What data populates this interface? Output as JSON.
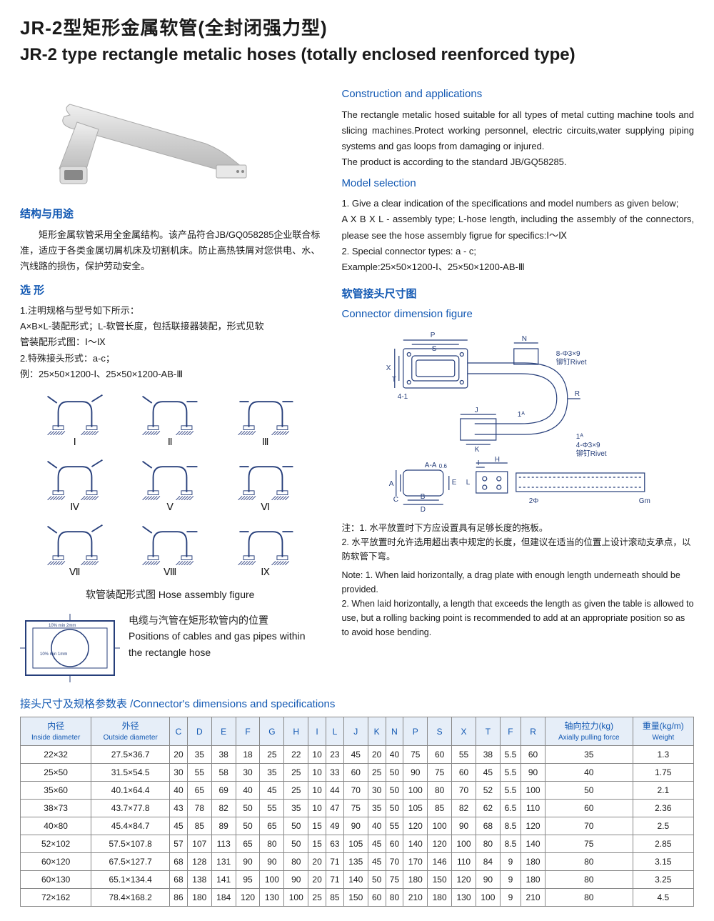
{
  "title_cn": "JR-2型矩形金属软管(全封闭强力型)",
  "title_en": "JR-2 type rectangle metalic hoses (totally enclosed reenforced type)",
  "left": {
    "structure_heading": "结构与用途",
    "structure_body": "矩形金属软管采用全金属结构。该产品符合JB/GQ058285企业联合标准，适应于各类金属切屑机床及切割机床。防止高热铁屑对您供电、水、汽线路的损伤，保护劳动安全。",
    "selection_heading": "选  形",
    "selection_lines": [
      "1.注明规格与型号如下所示：",
      "A×B×L-装配形式；L-软管长度，包括联接器装配，形式见软",
      "管装配形式图：Ⅰ～Ⅸ",
      "2.特殊接头形式：a-c；",
      "例：25×50×1200-Ⅰ、25×50×1200-AB-Ⅲ"
    ],
    "assembly_labels": [
      "Ⅰ",
      "Ⅱ",
      "Ⅲ",
      "Ⅳ",
      "Ⅴ",
      "Ⅵ",
      "Ⅶ",
      "Ⅷ",
      "Ⅸ"
    ],
    "assembly_caption": "软管装配形式图  Hose assembly figure",
    "positions_cn": "电缆与汽管在矩形软管内的位置",
    "positions_en": "Positions of cables and gas pipes within the rectangle hose"
  },
  "right": {
    "construction_heading": "Construction and applications",
    "construction_body": "The rectangle metalic hosed suitable for all types of metal cutting machine tools and slicing machines.Protect working personnel, electric circuits,water supplying piping systems and gas loops from damaging or injured.",
    "construction_body2": "The product is according to the standard JB/GQ58285.",
    "model_heading": "Model selection",
    "model_lines": [
      "1. Give a clear indication of the specifications and model numbers as given below;",
      "A X B X L - assembly type; L-hose length, including the assembly of the connectors, please see the hose assembly figrue for specifics:Ⅰ～Ⅸ",
      "2. Special connector types: a - c;",
      "Example:25×50×1200-Ⅰ、25×50×1200-AB-Ⅲ"
    ],
    "connector_heading_cn": "软管接头尺寸图",
    "connector_heading_en": "Connector dimension figure",
    "diagram_labels": {
      "P": "P",
      "S": "S",
      "N": "N",
      "T": "T",
      "X": "X",
      "R": "R",
      "J": "J",
      "K": "K",
      "one_a": "1ᴬ",
      "four_one": "4-1",
      "eight_rivet": "8-Φ3×9",
      "rivet_cn": "铆钉Rivet",
      "four_rivet": "4-Φ3×9",
      "A_A": "A-A",
      "A": "A",
      "B": "B",
      "C": "C",
      "D": "D",
      "E": "E",
      "I": "I",
      "H": "H",
      "L": "L",
      "two_phi": "2Φ",
      "Gm": "Gm",
      "zero_six": "0.6"
    },
    "notes_cn": "注：1. 水平放置时下方应设置具有足够长度的拖板。\n2. 水平放置时允许选用超出表中规定的长度，但建议在适当的位置上设计滚动支承点，以防软管下弯。",
    "notes_en": "Note: 1. When laid horizontally, a drag plate with enough length underneath should be provided.\n2. When laid horizontally, a length that exceeds the length as given the table is allowed to use, but a rolling backing point is recommended to add at an appropriate position so as to avoid hose bending."
  },
  "table": {
    "title": "接头尺寸及规格参数表 /Connector's dimensions and specifications",
    "headers": [
      {
        "cn": "内径",
        "en": "Inside diameter"
      },
      {
        "cn": "外径",
        "en": "Outside diameter"
      },
      {
        "cn": "C"
      },
      {
        "cn": "D"
      },
      {
        "cn": "E"
      },
      {
        "cn": "F"
      },
      {
        "cn": "G"
      },
      {
        "cn": "H"
      },
      {
        "cn": "I"
      },
      {
        "cn": "L"
      },
      {
        "cn": "J"
      },
      {
        "cn": "K"
      },
      {
        "cn": "N"
      },
      {
        "cn": "P"
      },
      {
        "cn": "S"
      },
      {
        "cn": "X"
      },
      {
        "cn": "T"
      },
      {
        "cn": "F"
      },
      {
        "cn": "R"
      },
      {
        "cn": "轴向拉力(kg)",
        "en": "Axially pulling force"
      },
      {
        "cn": "重量(kg/m)",
        "en": "Weight"
      }
    ],
    "rows": [
      [
        "22×32",
        "27.5×36.7",
        "20",
        "35",
        "38",
        "18",
        "25",
        "22",
        "10",
        "23",
        "45",
        "20",
        "40",
        "75",
        "60",
        "55",
        "38",
        "5.5",
        "60",
        "35",
        "1.3"
      ],
      [
        "25×50",
        "31.5×54.5",
        "30",
        "55",
        "58",
        "30",
        "35",
        "25",
        "10",
        "33",
        "60",
        "25",
        "50",
        "90",
        "75",
        "60",
        "45",
        "5.5",
        "90",
        "40",
        "1.75"
      ],
      [
        "35×60",
        "40.1×64.4",
        "40",
        "65",
        "69",
        "40",
        "45",
        "25",
        "10",
        "44",
        "70",
        "30",
        "50",
        "100",
        "80",
        "70",
        "52",
        "5.5",
        "100",
        "50",
        "2.1"
      ],
      [
        "38×73",
        "43.7×77.8",
        "43",
        "78",
        "82",
        "50",
        "55",
        "35",
        "10",
        "47",
        "75",
        "35",
        "50",
        "105",
        "85",
        "82",
        "62",
        "6.5",
        "110",
        "60",
        "2.36"
      ],
      [
        "40×80",
        "45.4×84.7",
        "45",
        "85",
        "89",
        "50",
        "65",
        "50",
        "15",
        "49",
        "90",
        "40",
        "55",
        "120",
        "100",
        "90",
        "68",
        "8.5",
        "120",
        "70",
        "2.5"
      ],
      [
        "52×102",
        "57.5×107.8",
        "57",
        "107",
        "113",
        "65",
        "80",
        "50",
        "15",
        "63",
        "105",
        "45",
        "60",
        "140",
        "120",
        "100",
        "80",
        "8.5",
        "140",
        "75",
        "2.85"
      ],
      [
        "60×120",
        "67.5×127.7",
        "68",
        "128",
        "131",
        "90",
        "90",
        "80",
        "20",
        "71",
        "135",
        "45",
        "70",
        "170",
        "146",
        "110",
        "84",
        "9",
        "180",
        "80",
        "3.15"
      ],
      [
        "60×130",
        "65.1×134.4",
        "68",
        "138",
        "141",
        "95",
        "100",
        "90",
        "20",
        "71",
        "140",
        "50",
        "75",
        "180",
        "150",
        "120",
        "90",
        "9",
        "180",
        "80",
        "3.25"
      ],
      [
        "72×162",
        "78.4×168.2",
        "86",
        "180",
        "184",
        "120",
        "130",
        "100",
        "25",
        "85",
        "150",
        "60",
        "80",
        "210",
        "180",
        "130",
        "100",
        "9",
        "210",
        "80",
        "4.5"
      ]
    ]
  },
  "colors": {
    "brand": "#1359b3",
    "border": "#888",
    "th_bg": "#e6eef8",
    "svg_stroke": "#263e7a",
    "hatch": "#3a4c88"
  }
}
